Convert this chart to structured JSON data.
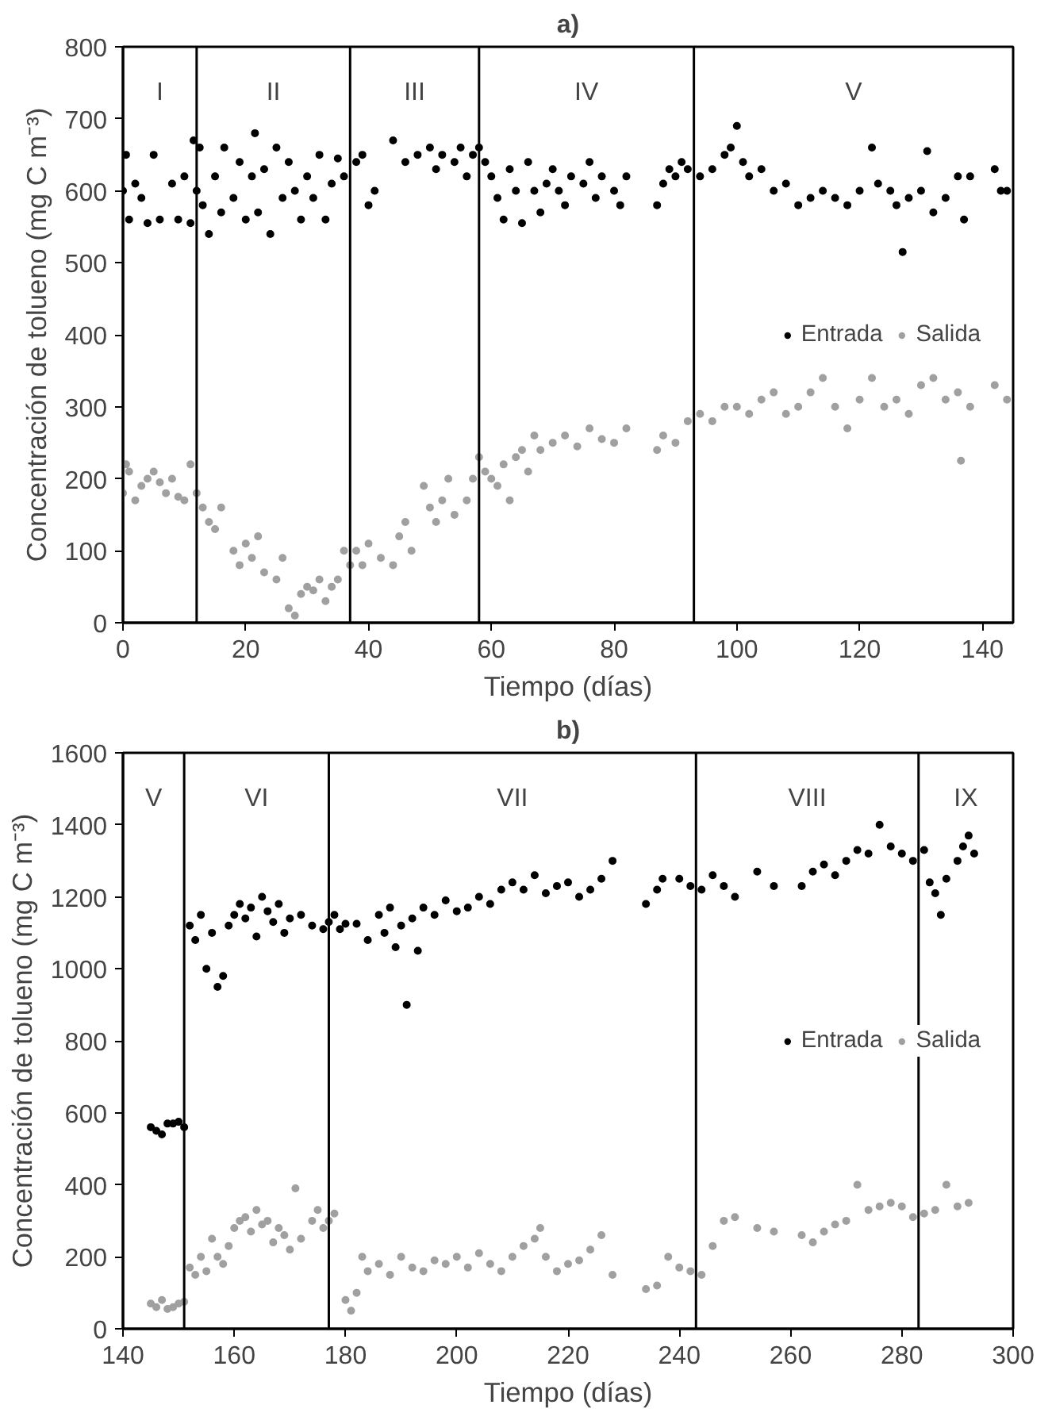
{
  "chart_data": [
    {
      "type": "scatter",
      "title": "a)",
      "xlabel": "Tiempo (días)",
      "ylabel": "Concentración de tolueno (mg C m⁻³)",
      "xlim": [
        0,
        145
      ],
      "ylim": [
        0,
        800
      ],
      "xticks": [
        0,
        20,
        40,
        60,
        80,
        100,
        120,
        140
      ],
      "yticks": [
        0,
        100,
        200,
        300,
        400,
        500,
        600,
        700,
        800
      ],
      "grid": false,
      "legend": "right",
      "marker": "circle",
      "series": [
        {
          "name": "Entrada",
          "color": "#000000",
          "x": [
            0,
            0.5,
            1,
            2,
            3,
            4,
            5,
            6,
            8,
            9,
            10,
            11,
            11.5,
            12,
            12.5,
            13,
            14,
            15,
            16,
            16.5,
            18,
            19,
            20,
            21,
            21.5,
            22,
            23,
            24,
            25,
            26,
            27,
            28,
            29,
            30,
            31,
            32,
            33,
            34,
            35,
            36,
            38,
            39,
            40,
            41,
            44,
            46,
            48,
            50,
            51,
            52,
            54,
            55,
            56,
            57,
            58,
            59,
            60,
            61,
            62,
            63,
            64,
            65,
            66,
            67,
            68,
            69,
            70,
            71,
            72,
            73,
            75,
            76,
            77,
            78,
            80,
            81,
            82,
            87,
            88,
            89,
            90,
            91,
            92,
            94,
            96,
            98,
            99,
            100,
            101,
            102,
            104,
            106,
            108,
            110,
            112,
            114,
            116,
            118,
            120,
            122,
            123,
            125,
            126,
            127,
            128,
            130,
            131,
            132,
            134,
            136,
            137,
            138,
            142,
            143,
            144
          ],
          "values": [
            600,
            650,
            560,
            610,
            590,
            555,
            650,
            560,
            610,
            560,
            620,
            555,
            670,
            600,
            660,
            580,
            540,
            620,
            570,
            660,
            590,
            640,
            560,
            620,
            680,
            570,
            630,
            540,
            660,
            590,
            640,
            600,
            560,
            620,
            590,
            650,
            560,
            610,
            645,
            620,
            640,
            650,
            580,
            600,
            670,
            640,
            650,
            660,
            630,
            650,
            640,
            660,
            620,
            650,
            660,
            640,
            620,
            590,
            560,
            630,
            600,
            555,
            640,
            600,
            570,
            610,
            630,
            600,
            580,
            620,
            610,
            640,
            590,
            620,
            600,
            580,
            620,
            580,
            610,
            630,
            620,
            640,
            630,
            620,
            630,
            650,
            660,
            690,
            640,
            620,
            630,
            600,
            610,
            580,
            590,
            600,
            590,
            580,
            600,
            660,
            610,
            600,
            580,
            515,
            590,
            600,
            655,
            570,
            590,
            620,
            560,
            620,
            630,
            600,
            600
          ]
        },
        {
          "name": "Salida",
          "color": "#a0a0a0",
          "x": [
            0,
            0.5,
            1,
            2,
            3,
            4,
            5,
            6,
            7,
            8,
            9,
            10,
            11,
            12,
            13,
            14,
            15,
            16,
            18,
            19,
            20,
            21,
            22,
            23,
            25,
            26,
            27,
            28,
            29,
            30,
            31,
            32,
            33,
            34,
            35,
            36,
            37,
            38,
            39,
            40,
            42,
            44,
            45,
            46,
            47,
            49,
            50,
            51,
            52,
            53,
            54,
            56,
            57,
            58,
            59,
            60,
            61,
            62,
            63,
            64,
            65,
            66,
            67,
            68,
            70,
            72,
            74,
            76,
            78,
            80,
            82,
            87,
            88,
            90,
            92,
            94,
            96,
            98,
            100,
            102,
            104,
            106,
            108,
            110,
            112,
            114,
            116,
            118,
            120,
            122,
            124,
            126,
            128,
            130,
            132,
            134,
            136,
            136.5,
            138,
            142,
            144
          ],
          "values": [
            180,
            220,
            210,
            170,
            190,
            200,
            210,
            195,
            180,
            200,
            175,
            170,
            220,
            180,
            160,
            140,
            130,
            160,
            100,
            80,
            110,
            90,
            120,
            70,
            60,
            90,
            20,
            10,
            40,
            50,
            45,
            60,
            30,
            50,
            60,
            100,
            80,
            100,
            80,
            110,
            90,
            80,
            120,
            140,
            100,
            190,
            160,
            140,
            170,
            200,
            150,
            170,
            200,
            230,
            210,
            200,
            190,
            220,
            170,
            230,
            240,
            210,
            260,
            240,
            250,
            260,
            245,
            270,
            255,
            250,
            270,
            240,
            260,
            250,
            280,
            290,
            280,
            300,
            300,
            290,
            310,
            320,
            290,
            300,
            320,
            340,
            300,
            270,
            310,
            340,
            300,
            310,
            290,
            330,
            340,
            310,
            320,
            225,
            300,
            330,
            310
          ]
        }
      ],
      "ref_lines": [
        {
          "axis": "x",
          "value": 12
        },
        {
          "axis": "x",
          "value": 37
        },
        {
          "axis": "x",
          "value": 58
        },
        {
          "axis": "x",
          "value": 93
        }
      ],
      "annotations": [
        "I",
        "II",
        "III",
        "IV",
        "V"
      ]
    },
    {
      "type": "scatter",
      "title": "b)",
      "xlabel": "Tiempo (días)",
      "ylabel": "Concentración de tolueno (mg C m⁻³)",
      "xlim": [
        140,
        300
      ],
      "ylim": [
        0,
        1600
      ],
      "xticks": [
        140,
        160,
        180,
        200,
        220,
        240,
        260,
        280,
        300
      ],
      "yticks": [
        0,
        200,
        400,
        600,
        800,
        1000,
        1200,
        1400,
        1600
      ],
      "grid": false,
      "legend": "right",
      "marker": "circle",
      "series": [
        {
          "name": "Entrada",
          "color": "#000000",
          "x": [
            145,
            146,
            147,
            148,
            149,
            150,
            151,
            152,
            153,
            154,
            155,
            156,
            157,
            158,
            159,
            160,
            161,
            162,
            163,
            164,
            165,
            166,
            167,
            168,
            169,
            170,
            172,
            174,
            176,
            177,
            178,
            179,
            180,
            182,
            184,
            186,
            187,
            188,
            189,
            190,
            191,
            192,
            193,
            194,
            196,
            198,
            200,
            202,
            204,
            206,
            208,
            210,
            212,
            214,
            216,
            218,
            220,
            222,
            224,
            226,
            228,
            234,
            236,
            237,
            240,
            242,
            244,
            246,
            248,
            250,
            254,
            257,
            262,
            264,
            266,
            268,
            270,
            272,
            274,
            276,
            278,
            280,
            282,
            284,
            285,
            286,
            287,
            288,
            290,
            291,
            292,
            293
          ],
          "values": [
            560,
            550,
            540,
            570,
            570,
            575,
            560,
            1120,
            1080,
            1150,
            1000,
            1100,
            950,
            980,
            1120,
            1150,
            1180,
            1140,
            1170,
            1090,
            1200,
            1160,
            1130,
            1180,
            1100,
            1140,
            1150,
            1120,
            1110,
            1130,
            1150,
            1110,
            1125,
            1125,
            1080,
            1150,
            1100,
            1170,
            1060,
            1120,
            900,
            1140,
            1050,
            1170,
            1150,
            1190,
            1160,
            1170,
            1200,
            1180,
            1220,
            1240,
            1220,
            1260,
            1210,
            1230,
            1240,
            1200,
            1220,
            1250,
            1300,
            1180,
            1220,
            1250,
            1250,
            1230,
            1220,
            1260,
            1230,
            1200,
            1270,
            1230,
            1230,
            1270,
            1290,
            1260,
            1300,
            1330,
            1320,
            1400,
            1340,
            1320,
            1300,
            1330,
            1240,
            1210,
            1150,
            1250,
            1300,
            1340,
            1370,
            1320
          ]
        },
        {
          "name": "Salida",
          "color": "#a0a0a0",
          "x": [
            145,
            146,
            147,
            148,
            149,
            150,
            151,
            152,
            153,
            154,
            155,
            156,
            157,
            158,
            159,
            160,
            161,
            162,
            163,
            164,
            165,
            166,
            167,
            168,
            169,
            170,
            171,
            172,
            174,
            175,
            176,
            177,
            178,
            180,
            181,
            182,
            183,
            184,
            186,
            188,
            190,
            192,
            194,
            196,
            198,
            200,
            202,
            204,
            206,
            208,
            210,
            212,
            214,
            215,
            216,
            218,
            220,
            222,
            224,
            226,
            228,
            234,
            236,
            238,
            240,
            242,
            244,
            246,
            248,
            250,
            254,
            257,
            262,
            264,
            266,
            268,
            270,
            272,
            274,
            276,
            278,
            280,
            282,
            284,
            286,
            288,
            290,
            292
          ],
          "values": [
            70,
            60,
            80,
            55,
            60,
            70,
            75,
            170,
            150,
            200,
            160,
            250,
            200,
            180,
            230,
            280,
            300,
            310,
            270,
            330,
            290,
            300,
            240,
            280,
            260,
            220,
            390,
            250,
            300,
            330,
            280,
            300,
            320,
            80,
            50,
            100,
            200,
            160,
            180,
            150,
            200,
            170,
            160,
            190,
            180,
            200,
            170,
            210,
            180,
            160,
            200,
            230,
            250,
            280,
            200,
            160,
            180,
            190,
            220,
            260,
            150,
            110,
            120,
            200,
            170,
            160,
            150,
            230,
            300,
            310,
            280,
            270,
            260,
            240,
            270,
            290,
            300,
            400,
            330,
            340,
            350,
            340,
            310,
            320,
            330,
            400,
            340,
            350
          ]
        }
      ],
      "ref_lines": [
        {
          "axis": "x",
          "value": 151
        },
        {
          "axis": "x",
          "value": 177
        },
        {
          "axis": "x",
          "value": 243
        },
        {
          "axis": "x",
          "value": 283
        }
      ],
      "annotations": [
        "V",
        "VI",
        "VII",
        "VIII",
        "IX"
      ]
    }
  ]
}
